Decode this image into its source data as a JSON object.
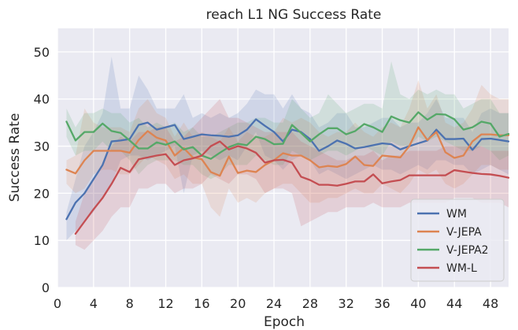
{
  "chart_data": {
    "type": "line",
    "title": "reach L1 NG Success Rate",
    "xlabel": "Epoch",
    "ylabel": "Success Rate",
    "xlim": [
      0,
      50
    ],
    "ylim": [
      0,
      55
    ],
    "xticks": [
      0,
      4,
      8,
      12,
      16,
      20,
      24,
      28,
      32,
      36,
      40,
      44,
      48
    ],
    "yticks": [
      0,
      10,
      20,
      30,
      40,
      50
    ],
    "grid": true,
    "legend_position": "lower-right",
    "series": [
      {
        "name": "WM",
        "color": "#4c72b0",
        "x": [
          1,
          2,
          3,
          4,
          5,
          6,
          7,
          8,
          9,
          10,
          11,
          12,
          13,
          14,
          15,
          16,
          17,
          18,
          19,
          20,
          21,
          22,
          23,
          24,
          25,
          26,
          27,
          28,
          29,
          30,
          31,
          32,
          33,
          34,
          35,
          36,
          37,
          38,
          39,
          40,
          41,
          42,
          43,
          44,
          45,
          46,
          47,
          48,
          49,
          50
        ],
        "values": [
          14.5,
          18,
          20,
          23,
          26,
          31,
          31.2,
          31.5,
          34.5,
          35,
          33.5,
          34,
          34.5,
          31.5,
          32,
          32.5,
          32.3,
          32.2,
          32,
          32.3,
          33.5,
          35.7,
          34.3,
          33,
          31,
          33.5,
          33,
          31.5,
          29,
          30,
          31.2,
          30.5,
          29.5,
          29.8,
          30.2,
          30.6,
          30.4,
          29.3,
          30,
          30.6,
          31.2,
          33.5,
          31.5,
          31.5,
          31.6,
          29.2,
          31.5,
          31.6,
          31.3,
          31
        ],
        "lower": [
          10,
          12,
          14,
          16,
          19,
          22,
          27,
          28,
          28,
          27,
          28,
          29,
          30,
          20,
          28,
          29,
          28,
          27,
          28,
          27,
          30,
          33,
          28,
          27,
          25,
          27,
          28,
          27,
          24,
          25,
          24,
          23,
          24,
          25,
          26,
          25,
          25,
          24,
          25,
          26,
          25,
          27,
          27,
          26,
          26,
          24,
          25,
          26,
          25,
          24
        ],
        "upper": [
          16,
          23,
          30,
          33,
          37,
          49,
          38,
          38,
          45,
          42,
          38,
          38,
          38,
          41,
          36,
          37,
          36,
          37,
          36,
          37,
          39,
          42,
          41,
          41,
          38,
          41,
          38,
          37,
          34,
          35,
          37,
          37,
          34,
          34,
          35,
          36,
          36,
          34,
          35,
          35,
          37,
          40,
          36,
          36,
          36,
          33,
          37,
          38,
          37,
          37
        ]
      },
      {
        "name": "V-JEPA",
        "color": "#dd8452",
        "x": [
          1,
          2,
          3,
          4,
          5,
          6,
          7,
          8,
          9,
          10,
          11,
          12,
          13,
          14,
          15,
          16,
          17,
          18,
          19,
          20,
          21,
          22,
          23,
          24,
          25,
          26,
          27,
          28,
          29,
          30,
          31,
          32,
          33,
          34,
          35,
          36,
          37,
          38,
          39,
          40,
          41,
          42,
          43,
          44,
          45,
          46,
          47,
          48,
          49,
          50
        ],
        "values": [
          25,
          24.2,
          27,
          29,
          29,
          29,
          29,
          28.6,
          31.3,
          33.2,
          31.8,
          31.2,
          28,
          29.6,
          27.6,
          27.2,
          24.5,
          23.7,
          27.8,
          24.3,
          24.8,
          24.5,
          26,
          27,
          28.5,
          28,
          28,
          27,
          25.5,
          25.8,
          25.6,
          26.2,
          27.8,
          26,
          25.8,
          28,
          27.8,
          27.6,
          30,
          34,
          31.3,
          33,
          28.7,
          27.5,
          28,
          31,
          32.5,
          32.5,
          32.3,
          32.3
        ],
        "lower": [
          22,
          20,
          21,
          24,
          25,
          25,
          24,
          24,
          26,
          28,
          27,
          26,
          23,
          24,
          22,
          22,
          17,
          15,
          21,
          18,
          19,
          18,
          20,
          21,
          22,
          22,
          20,
          18,
          18,
          19,
          19,
          20,
          21,
          20,
          20,
          22,
          21,
          20,
          22,
          25,
          24,
          25,
          22,
          21,
          22,
          24,
          26,
          26,
          25,
          25
        ],
        "upper": [
          27,
          28,
          38,
          35,
          34,
          34,
          34,
          33,
          38,
          40,
          37,
          36,
          32,
          35,
          32,
          33,
          32,
          31,
          34,
          31,
          33,
          32,
          32,
          33,
          36,
          35,
          36,
          35,
          33,
          32,
          33,
          33,
          35,
          33,
          32,
          34,
          35,
          34,
          38,
          44,
          38,
          41,
          35,
          34,
          35,
          38,
          43,
          41,
          40,
          40
        ]
      },
      {
        "name": "V-JEPA2",
        "color": "#55a868",
        "x": [
          1,
          2,
          3,
          4,
          5,
          6,
          7,
          8,
          9,
          10,
          11,
          12,
          13,
          14,
          15,
          16,
          17,
          18,
          19,
          20,
          21,
          22,
          23,
          24,
          25,
          26,
          27,
          28,
          29,
          30,
          31,
          32,
          33,
          34,
          35,
          36,
          37,
          38,
          39,
          40,
          41,
          42,
          43,
          44,
          45,
          46,
          47,
          48,
          49,
          50
        ],
        "values": [
          35.2,
          31.2,
          33,
          33,
          34.8,
          33.2,
          32.8,
          31.2,
          29.5,
          29.5,
          30.8,
          30.3,
          31,
          29.3,
          29.8,
          28,
          27.3,
          28.6,
          29.8,
          30.5,
          30.2,
          32,
          31.5,
          30.4,
          30.5,
          34.5,
          32.8,
          31,
          32.5,
          33.8,
          33.8,
          32.5,
          33.2,
          34.7,
          34,
          33,
          36.3,
          35.5,
          35,
          37.2,
          35.6,
          36.8,
          36.7,
          35.7,
          33.5,
          34,
          35.2,
          34.8,
          32,
          32.6
        ],
        "lower": [
          32,
          28,
          29,
          29,
          31,
          29,
          29,
          27,
          24,
          26,
          27,
          27,
          27,
          26,
          26,
          24,
          23,
          24,
          26,
          26,
          26,
          28,
          27,
          26,
          26,
          29,
          28,
          27,
          28,
          29,
          29,
          28,
          29,
          30,
          29,
          28,
          31,
          30,
          30,
          32,
          31,
          32,
          31,
          30,
          29,
          29,
          30,
          29,
          27,
          28
        ],
        "upper": [
          38,
          34,
          37,
          37,
          38,
          37,
          37,
          35,
          36,
          34,
          35,
          34,
          35,
          33,
          34,
          32,
          32,
          33,
          34,
          35,
          35,
          36,
          36,
          35,
          35,
          40,
          38,
          36,
          37,
          41,
          39,
          37,
          38,
          39,
          39,
          38,
          48,
          41,
          40,
          42,
          41,
          42,
          41,
          41,
          38,
          39,
          40,
          40,
          37,
          37
        ]
      },
      {
        "name": "WM-L",
        "color": "#c44e52",
        "x": [
          2,
          3,
          4,
          5,
          6,
          7,
          8,
          9,
          10,
          11,
          12,
          13,
          14,
          15,
          16,
          17,
          18,
          19,
          20,
          21,
          22,
          23,
          24,
          25,
          26,
          27,
          28,
          29,
          30,
          31,
          32,
          33,
          34,
          35,
          36,
          37,
          38,
          39,
          40,
          41,
          42,
          43,
          44,
          45,
          46,
          47,
          48,
          49,
          50
        ],
        "values": [
          11.4,
          14,
          16.6,
          19,
          22,
          25.4,
          24.5,
          27.2,
          27.6,
          28,
          28.3,
          26,
          27,
          27.4,
          28,
          30,
          31,
          29.3,
          30,
          29.5,
          28.6,
          26.5,
          27,
          27.1,
          26.5,
          23.5,
          22.8,
          21.8,
          21.8,
          21.6,
          22,
          22.5,
          22.5,
          24,
          22.1,
          22.5,
          22.8,
          23.8,
          23.8,
          23.8,
          23.8,
          23.8,
          24.9,
          24.6,
          24.3,
          24.1,
          24,
          23.7,
          23.3
        ],
        "lower": [
          9,
          8,
          10,
          12,
          15,
          17,
          17,
          21,
          21,
          22,
          22,
          20,
          21,
          21,
          22,
          24,
          23,
          22,
          24,
          24,
          23,
          20,
          21,
          21,
          20,
          13,
          14,
          15,
          16,
          16,
          17,
          17,
          17,
          18,
          17,
          17,
          17,
          18,
          18,
          18,
          18,
          18,
          19,
          19,
          19,
          18,
          18,
          18,
          17
        ],
        "upper": [
          14,
          20,
          23,
          26,
          30,
          32,
          31,
          33,
          33,
          34,
          34,
          31,
          32,
          34,
          36,
          38,
          40,
          36,
          36,
          35,
          34,
          33,
          33,
          33,
          33,
          31,
          30,
          29,
          28,
          27,
          27,
          28,
          28,
          29,
          27,
          28,
          28,
          29,
          29,
          29,
          29,
          30,
          30,
          30,
          30,
          30,
          29,
          29,
          29
        ]
      }
    ]
  }
}
